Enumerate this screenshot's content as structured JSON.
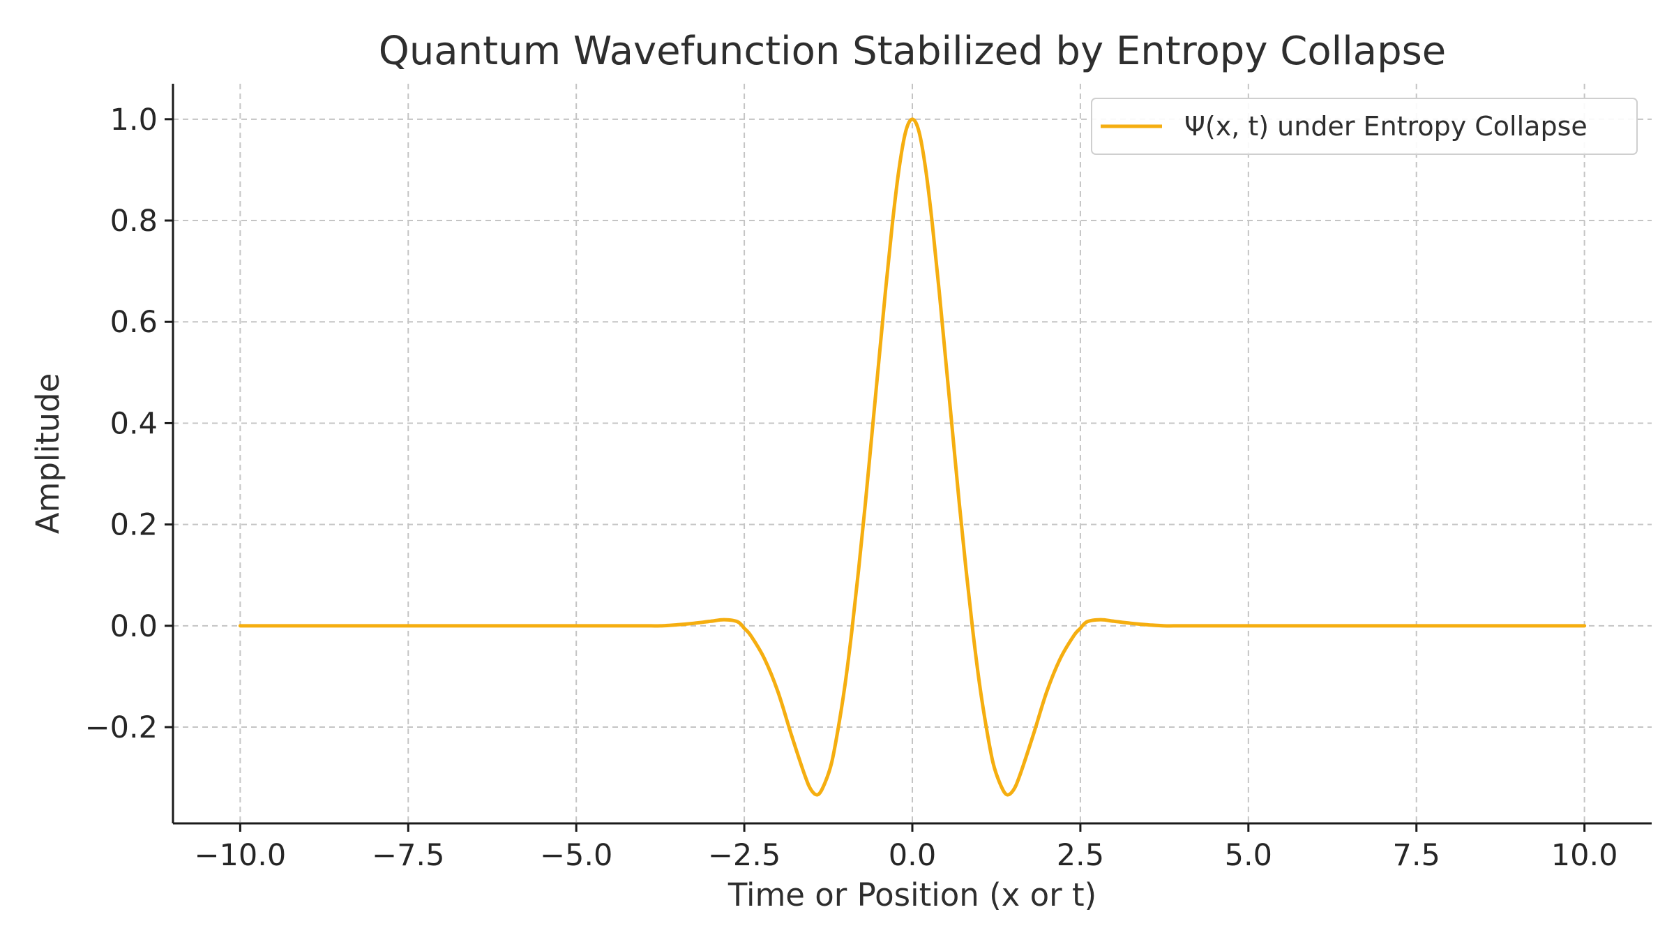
{
  "chart_data": {
    "type": "line",
    "title": "Quantum Wavefunction Stabilized by Entropy Collapse",
    "xlabel": "Time or Position (x or t)",
    "ylabel": "Amplitude",
    "xlim": [
      -11.0,
      11.0
    ],
    "ylim": [
      -0.39,
      1.07
    ],
    "x_ticks": [
      -10.0,
      -7.5,
      -5.0,
      -2.5,
      0.0,
      2.5,
      5.0,
      7.5,
      10.0
    ],
    "x_tick_labels": [
      "−10.0",
      "−7.5",
      "−5.0",
      "−2.5",
      "0.0",
      "2.5",
      "5.0",
      "7.5",
      "10.0"
    ],
    "y_ticks": [
      -0.2,
      0.0,
      0.2,
      0.4,
      0.6,
      0.8,
      1.0
    ],
    "y_tick_labels": [
      "−0.2",
      "0.0",
      "0.2",
      "0.4",
      "0.6",
      "0.8",
      "1.0"
    ],
    "grid": true,
    "legend": {
      "position": "top-right"
    },
    "series": [
      {
        "name": "Ψ(x, t) under Entropy Collapse",
        "color": "#f5ae10",
        "x": [
          -10.0,
          -9.0,
          -8.0,
          -7.0,
          -6.0,
          -5.0,
          -4.5,
          -4.0,
          -3.75,
          -3.5,
          -3.25,
          -3.0,
          -2.8,
          -2.6,
          -2.5,
          -2.4,
          -2.2,
          -2.0,
          -1.8,
          -1.6,
          -1.5,
          -1.4,
          -1.3,
          -1.2,
          -1.1,
          -1.0,
          -0.9,
          -0.8,
          -0.7,
          -0.6,
          -0.5,
          -0.4,
          -0.3,
          -0.2,
          -0.1,
          0.0,
          0.1,
          0.2,
          0.3,
          0.4,
          0.5,
          0.6,
          0.7,
          0.8,
          0.9,
          1.0,
          1.1,
          1.2,
          1.3,
          1.4,
          1.5,
          1.6,
          1.8,
          2.0,
          2.2,
          2.4,
          2.5,
          2.6,
          2.8,
          3.0,
          3.25,
          3.5,
          3.75,
          4.0,
          4.5,
          5.0,
          6.0,
          7.0,
          8.0,
          9.0,
          10.0
        ],
        "y": [
          0.0,
          0.0,
          0.0,
          0.0,
          0.0,
          0.0,
          0.0,
          0.0,
          0.0,
          0.002,
          0.005,
          0.009,
          0.012,
          0.008,
          -0.005,
          -0.02,
          -0.065,
          -0.13,
          -0.215,
          -0.295,
          -0.325,
          -0.333,
          -0.31,
          -0.27,
          -0.2,
          -0.115,
          -0.01,
          0.11,
          0.24,
          0.38,
          0.52,
          0.66,
          0.79,
          0.9,
          0.975,
          1.0,
          0.975,
          0.9,
          0.79,
          0.66,
          0.52,
          0.38,
          0.24,
          0.11,
          -0.01,
          -0.115,
          -0.2,
          -0.27,
          -0.31,
          -0.333,
          -0.325,
          -0.295,
          -0.215,
          -0.13,
          -0.065,
          -0.02,
          -0.005,
          0.008,
          0.012,
          0.009,
          0.005,
          0.002,
          0.0,
          0.0,
          0.0,
          0.0,
          0.0,
          0.0,
          0.0,
          0.0,
          0.0
        ]
      }
    ]
  }
}
